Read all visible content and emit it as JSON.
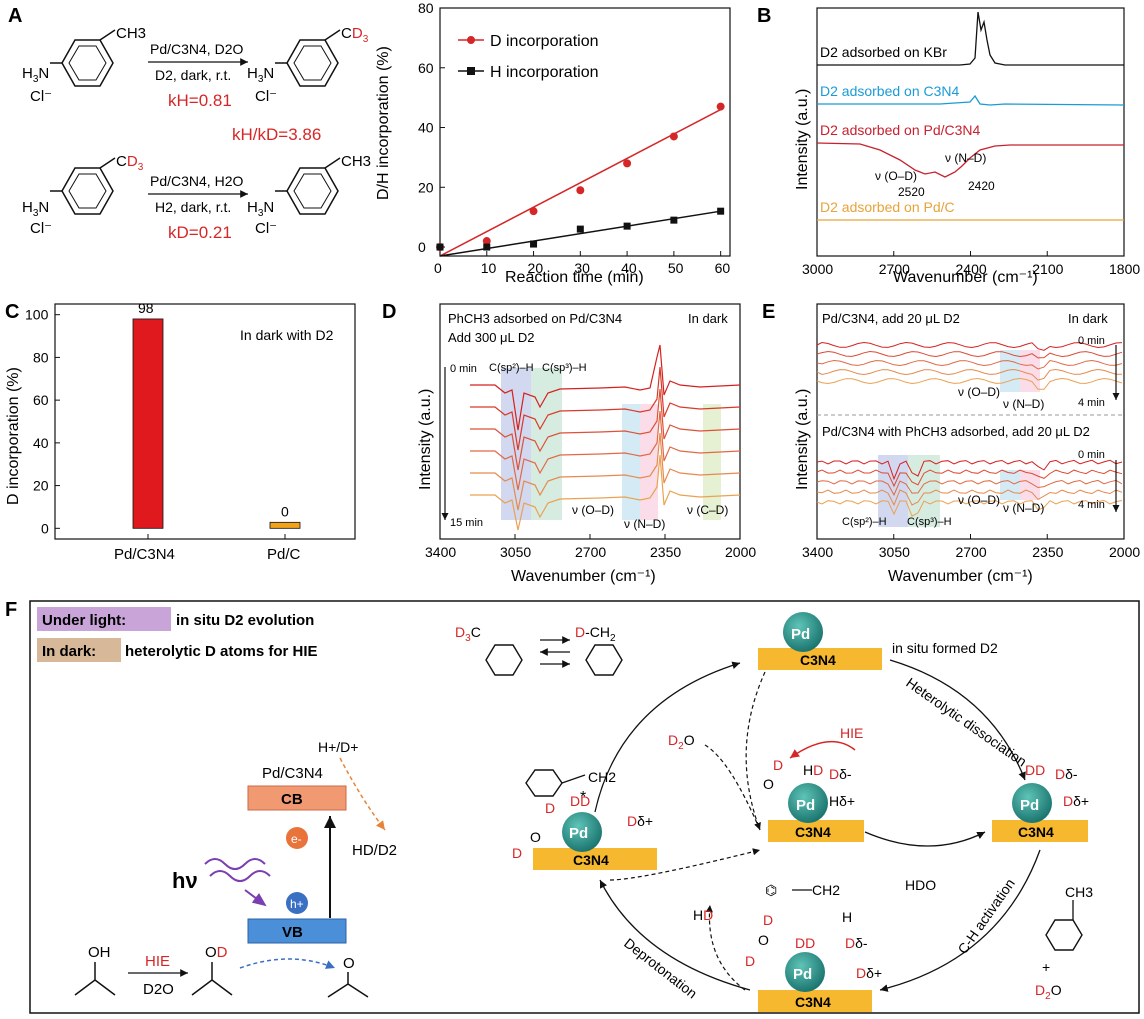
{
  "panel_labels": {
    "a": "A",
    "b": "B",
    "c": "C",
    "d": "D",
    "e": "E",
    "f": "F"
  },
  "panelA": {
    "rxn1": {
      "reagent_top": "Pd/C3N4, D2O",
      "reagent_bottom": "D2, dark, r.t.",
      "k": "kH=0.81"
    },
    "ratio": "kH/kD=3.86",
    "rxn2": {
      "reagent_top": "Pd/C3N4, H2O",
      "reagent_bottom": "H2, dark, r.t.",
      "k": "kD=0.21"
    },
    "substituents": {
      "ch3": "CH3",
      "cd3": "CD3"
    }
  },
  "colors": {
    "red": "#d62728",
    "black": "#111111",
    "kbr": "#111111",
    "c3n4": "#1a9bd7",
    "pdc3n4": "#c8202f",
    "pdc": "#e8a33a",
    "bar1": "#e0191f",
    "bar2": "#f2a21b",
    "pd": "#2a8f86",
    "c3n4_box": "#f5b82e",
    "cb": "#f19a72",
    "vb": "#4a8fd8"
  },
  "chart_data": [
    {
      "type": "scatter",
      "panel": "A-chart",
      "xlabel": "Reaction time (min)",
      "ylabel": "D/H incorporation (%)",
      "xlim": [
        0,
        62
      ],
      "ylim": [
        -3,
        80
      ],
      "xticks": [
        0,
        10,
        20,
        30,
        40,
        50,
        60
      ],
      "yticks": [
        0,
        20,
        40,
        60,
        80
      ],
      "legend_position": "top-left",
      "series": [
        {
          "name": "D incorporation",
          "x": [
            0,
            10,
            20,
            30,
            40,
            50,
            60
          ],
          "y": [
            0,
            2,
            12,
            19,
            28,
            37,
            47
          ],
          "fit": [
            [
              0,
              -3
            ],
            [
              60,
              46
            ]
          ]
        },
        {
          "name": "H incorporation",
          "x": [
            0,
            10,
            20,
            30,
            40,
            50,
            60
          ],
          "y": [
            0,
            0,
            1,
            6,
            7,
            9,
            12
          ],
          "fit": [
            [
              0,
              -3
            ],
            [
              60,
              12
            ]
          ]
        }
      ]
    },
    {
      "type": "line",
      "panel": "B",
      "xlabel": "Wavenumber (cm⁻¹)",
      "ylabel": "Intensity (a.u.)",
      "xlim": [
        3000,
        1800
      ],
      "xticks": [
        3000,
        2700,
        2400,
        2100,
        1800
      ],
      "series": [
        {
          "name": "D2 adsorbed on KBr"
        },
        {
          "name": "D2 adsorbed on C3N4"
        },
        {
          "name": "D2 adsorbed on Pd/C3N4"
        },
        {
          "name": "D2 adsorbed on Pd/C"
        }
      ],
      "annotations": [
        "ν (O–D)",
        "ν (N–D)",
        "2520",
        "2420"
      ]
    },
    {
      "type": "bar",
      "panel": "C",
      "categories": [
        "Pd/C3N4",
        "Pd/C"
      ],
      "values": [
        98,
        0
      ],
      "ylabel": "D incorporation (%)",
      "ylim": [
        -5,
        105
      ],
      "yticks": [
        0,
        20,
        40,
        60,
        80,
        100
      ],
      "annotation": "In dark with D2"
    },
    {
      "type": "line",
      "panel": "D",
      "xlabel": "Wavenumber (cm⁻¹)",
      "ylabel": "Intensity (a.u.)",
      "xlim": [
        3400,
        2000
      ],
      "xticks": [
        3400,
        3050,
        2700,
        2350,
        2000
      ],
      "notes": [
        "PhCH3 adsorbed on Pd/C3N4",
        "Add 300 μL D2",
        "In dark",
        "0 min",
        "15 min"
      ],
      "annotations": [
        "C(sp²)–H",
        "C(sp³)–H",
        "ν (O–D)",
        "ν (N–D)",
        "ν (C–D)"
      ]
    },
    {
      "type": "line",
      "panel": "E",
      "xlabel": "Wavenumber (cm⁻¹)",
      "ylabel": "Intensity (a.u.)",
      "xlim": [
        3400,
        2000
      ],
      "xticks": [
        3400,
        3050,
        2700,
        2350,
        2000
      ],
      "notes": [
        "Pd/C3N4, add 20 μL D2",
        "In dark",
        "Pd/C3N4 with PhCH3 adsorbed, add 20 μL D2",
        "0 min",
        "4 min"
      ],
      "annotations": [
        "ν (O–D)",
        "ν (N–D)",
        "C(sp²)–H",
        "C(sp³)–H"
      ]
    }
  ],
  "panelF": {
    "legend_light": "Under light:",
    "legend_light_text": "in situ D2 evolution",
    "legend_dark": "In dark:",
    "legend_dark_text": "heterolytic D atoms for HIE",
    "catalyst": "Pd/C3N4",
    "cb": "CB",
    "vb": "VB",
    "electron": "e-",
    "hole": "h+",
    "hv": "hν",
    "hd": "H+/D+",
    "hd2": "HD/D2",
    "hie": "HIE",
    "d2o": "D2O",
    "pd": "Pd",
    "c3n4": "C3N4",
    "in_situ": "in situ formed D2",
    "hetero": "Heterolytic dissociation",
    "hdo": "HDO",
    "ch_act": "C-H activation",
    "deprot": "Deprotonation",
    "hd_mol": "HD",
    "cd3": "D3C",
    "dch2": "D-CH2",
    "ch2": "CH2",
    "ch3": "CH3",
    "plus": "+",
    "delta_minus": "δ-",
    "delta_plus": "δ+"
  }
}
